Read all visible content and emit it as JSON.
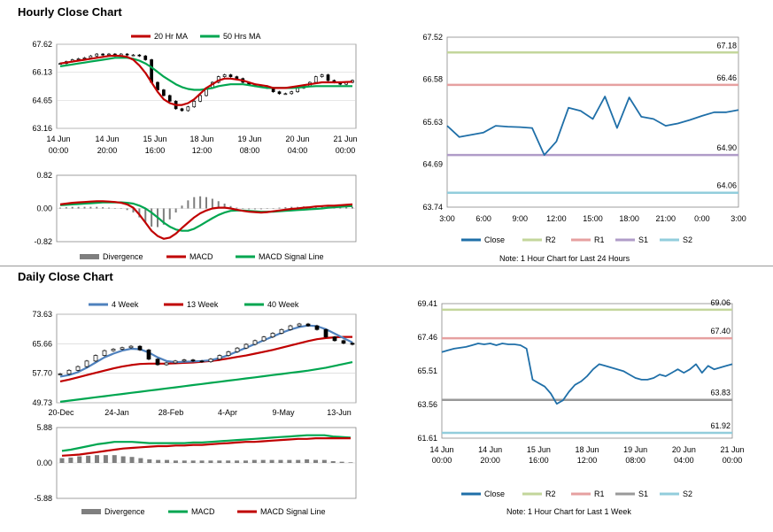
{
  "sections": {
    "hourly_title": "Hourly Close Chart",
    "daily_title": "Daily Close Chart"
  },
  "colors": {
    "ma_short": "#c00000",
    "ma_long": "#00a650",
    "macd_blue": "#4f81bd",
    "close": "#1f6fa8",
    "r2": "#c3d69b",
    "r1": "#e6a0a0",
    "s1": "#b09cc8",
    "s2": "#92cddc",
    "s1_daily": "#999999",
    "divergence": "#7f7f7f"
  },
  "chart_data": [
    {
      "id": "hourly_price",
      "type": "candlestick",
      "legend": [
        "20 Hr MA",
        "50 Hrs MA"
      ],
      "yticks": [
        "67.62",
        "66.13",
        "64.65",
        "63.16"
      ],
      "ylim": [
        63.16,
        67.62
      ],
      "xticks": [
        [
          "14 Jun",
          "00:00"
        ],
        [
          "14 Jun",
          "20:00"
        ],
        [
          "15 Jun",
          "16:00"
        ],
        [
          "18 Jun",
          "12:00"
        ],
        [
          "19 Jun",
          "08:00"
        ],
        [
          "20 Jun",
          "04:00"
        ],
        [
          "21 Jun",
          "00:00"
        ]
      ],
      "close": [
        66.6,
        66.7,
        66.8,
        66.85,
        66.9,
        67.0,
        67.1,
        67.05,
        67.1,
        67.0,
        67.1,
        67.05,
        67.05,
        67.0,
        66.8,
        65.6,
        65.2,
        64.9,
        64.6,
        64.2,
        64.1,
        64.3,
        64.6,
        64.9,
        65.3,
        65.6,
        65.9,
        66.0,
        65.9,
        65.8,
        65.6,
        65.5,
        65.4,
        65.4,
        65.3,
        65.1,
        65.0,
        65.0,
        65.1,
        65.3,
        65.4,
        65.6,
        65.9,
        66.0,
        65.7,
        65.6,
        65.5,
        65.6,
        65.7
      ],
      "ma20": [
        66.6,
        66.65,
        66.7,
        66.75,
        66.8,
        66.85,
        66.9,
        66.95,
        67.0,
        67.02,
        67.0,
        66.95,
        66.8,
        66.5,
        66.1,
        65.6,
        65.1,
        64.7,
        64.5,
        64.4,
        64.4,
        64.5,
        64.7,
        65.0,
        65.3,
        65.5,
        65.7,
        65.8,
        65.8,
        65.75,
        65.7,
        65.6,
        65.5,
        65.45,
        65.4,
        65.3,
        65.3,
        65.3,
        65.35,
        65.4,
        65.45,
        65.5,
        65.55,
        65.6,
        65.6,
        65.6,
        65.6,
        65.62,
        65.63
      ],
      "ma50": [
        66.45,
        66.5,
        66.55,
        66.6,
        66.65,
        66.7,
        66.75,
        66.8,
        66.85,
        66.9,
        66.9,
        66.9,
        66.85,
        66.75,
        66.6,
        66.4,
        66.15,
        65.9,
        65.7,
        65.5,
        65.35,
        65.25,
        65.2,
        65.2,
        65.25,
        65.3,
        65.4,
        65.45,
        65.5,
        65.5,
        65.5,
        65.45,
        65.4,
        65.35,
        65.3,
        65.3,
        65.3,
        65.3,
        65.3,
        65.32,
        65.35,
        65.38,
        65.4,
        65.4,
        65.4,
        65.4,
        65.4,
        65.4,
        65.4
      ]
    },
    {
      "id": "hourly_macd",
      "type": "macd",
      "legend": [
        "Divergence",
        "MACD",
        "MACD Signal Line"
      ],
      "yticks": [
        "0.82",
        "0.00",
        "-0.82"
      ],
      "ylim": [
        -0.82,
        0.82
      ],
      "macd": [
        0.1,
        0.12,
        0.14,
        0.15,
        0.16,
        0.17,
        0.18,
        0.18,
        0.17,
        0.16,
        0.14,
        0.1,
        0.02,
        -0.15,
        -0.35,
        -0.55,
        -0.68,
        -0.75,
        -0.72,
        -0.62,
        -0.48,
        -0.35,
        -0.22,
        -0.12,
        -0.05,
        0.0,
        0.02,
        0.02,
        0.0,
        -0.03,
        -0.06,
        -0.08,
        -0.09,
        -0.1,
        -0.09,
        -0.07,
        -0.05,
        -0.03,
        -0.01,
        0.0,
        0.02,
        0.03,
        0.05,
        0.06,
        0.07,
        0.07,
        0.08,
        0.09,
        0.1
      ],
      "signal": [
        0.08,
        0.09,
        0.1,
        0.11,
        0.12,
        0.13,
        0.14,
        0.15,
        0.15,
        0.15,
        0.15,
        0.14,
        0.12,
        0.07,
        0.0,
        -0.1,
        -0.22,
        -0.35,
        -0.45,
        -0.52,
        -0.55,
        -0.55,
        -0.5,
        -0.42,
        -0.33,
        -0.24,
        -0.16,
        -0.1,
        -0.06,
        -0.05,
        -0.05,
        -0.06,
        -0.07,
        -0.08,
        -0.08,
        -0.08,
        -0.07,
        -0.06,
        -0.05,
        -0.04,
        -0.03,
        -0.02,
        -0.01,
        0.0,
        0.02,
        0.03,
        0.04,
        0.05,
        0.06
      ],
      "divergence": [
        0.02,
        0.03,
        0.04,
        0.04,
        0.04,
        0.04,
        0.04,
        0.03,
        0.02,
        0.01,
        -0.01,
        -0.04,
        -0.1,
        -0.22,
        -0.35,
        -0.45,
        -0.46,
        -0.4,
        -0.27,
        -0.1,
        0.07,
        0.2,
        0.28,
        0.3,
        0.28,
        0.24,
        0.18,
        0.12,
        0.06,
        0.02,
        -0.01,
        -0.02,
        -0.02,
        -0.02,
        -0.01,
        0.01,
        0.02,
        0.03,
        0.04,
        0.04,
        0.05,
        0.05,
        0.06,
        0.06,
        0.05,
        0.04,
        0.04,
        0.04,
        0.04
      ]
    },
    {
      "id": "hourly_24h",
      "type": "line",
      "yticks": [
        "67.52",
        "66.58",
        "65.63",
        "64.69",
        "63.74"
      ],
      "ylim": [
        63.74,
        67.52
      ],
      "xticks": [
        "3:00",
        "6:00",
        "9:00",
        "12:00",
        "15:00",
        "18:00",
        "21:00",
        "0:00",
        "3:00"
      ],
      "levels": {
        "R2": 67.18,
        "R1": 66.46,
        "S1": 64.9,
        "S2": 64.06
      },
      "level_labels": {
        "R2": "67.18",
        "R1": "66.46",
        "S1": "64.90",
        "S2": "64.06"
      },
      "values": [
        65.55,
        65.3,
        65.35,
        65.4,
        65.55,
        65.53,
        65.52,
        65.5,
        64.9,
        65.2,
        65.95,
        65.88,
        65.7,
        66.2,
        65.5,
        66.18,
        65.75,
        65.7,
        65.55,
        65.6,
        65.68,
        65.77,
        65.85,
        65.85,
        65.9
      ],
      "legend": [
        "Close",
        "R2",
        "R1",
        "S1",
        "S2"
      ],
      "note": "Note: 1 Hour Chart for Last 24 Hours"
    },
    {
      "id": "daily_price",
      "type": "candlestick",
      "legend": [
        "4 Week",
        "13 Week",
        "40 Week"
      ],
      "yticks": [
        "73.63",
        "65.66",
        "57.70",
        "49.73"
      ],
      "ylim": [
        49.73,
        73.63
      ],
      "xticks": [
        "20-Dec",
        "24-Jan",
        "28-Feb",
        "4-Apr",
        "9-May",
        "13-Jun"
      ],
      "close": [
        57.5,
        58.5,
        59.5,
        61.0,
        62.5,
        63.8,
        64.2,
        64.6,
        65.0,
        64.0,
        61.5,
        60.0,
        60.5,
        61.0,
        61.3,
        61.0,
        60.8,
        61.5,
        62.5,
        63.5,
        64.5,
        65.5,
        66.5,
        67.5,
        68.5,
        69.5,
        70.5,
        71.0,
        70.5,
        69.5,
        67.5,
        66.5,
        65.8,
        65.5
      ],
      "wk4": [
        56.8,
        57.2,
        58.0,
        59.2,
        60.6,
        62.0,
        63.0,
        63.8,
        64.3,
        64.2,
        63.3,
        62.0,
        61.0,
        60.7,
        60.8,
        60.9,
        61.0,
        61.2,
        61.8,
        62.6,
        63.6,
        64.6,
        65.6,
        66.6,
        67.6,
        68.6,
        69.5,
        70.2,
        70.6,
        70.4,
        69.6,
        68.4,
        67.2,
        66.0
      ],
      "wk13": [
        55.5,
        56.0,
        56.6,
        57.2,
        57.8,
        58.4,
        59.0,
        59.5,
        59.9,
        60.2,
        60.3,
        60.3,
        60.3,
        60.4,
        60.5,
        60.6,
        60.8,
        61.0,
        61.3,
        61.7,
        62.1,
        62.5,
        63.0,
        63.5,
        64.0,
        64.6,
        65.2,
        65.8,
        66.4,
        66.9,
        67.2,
        67.4,
        67.5,
        67.5
      ],
      "wk40": [
        50.0,
        50.3,
        50.6,
        50.9,
        51.2,
        51.5,
        51.8,
        52.1,
        52.4,
        52.7,
        53.0,
        53.3,
        53.6,
        53.9,
        54.2,
        54.5,
        54.8,
        55.1,
        55.4,
        55.7,
        56.0,
        56.3,
        56.6,
        56.9,
        57.2,
        57.5,
        57.8,
        58.1,
        58.4,
        58.8,
        59.2,
        59.7,
        60.2,
        60.7
      ]
    },
    {
      "id": "daily_macd",
      "type": "macd",
      "legend": [
        "Divergence",
        "MACD",
        "MACD Signal Line"
      ],
      "yticks": [
        "5.88",
        "0.00",
        "-5.88"
      ],
      "ylim": [
        -5.88,
        5.88
      ],
      "macd": [
        2.0,
        2.2,
        2.5,
        2.8,
        3.1,
        3.3,
        3.5,
        3.5,
        3.5,
        3.4,
        3.3,
        3.3,
        3.3,
        3.3,
        3.3,
        3.4,
        3.4,
        3.5,
        3.6,
        3.7,
        3.8,
        3.9,
        4.0,
        4.1,
        4.2,
        4.3,
        4.4,
        4.5,
        4.6,
        4.6,
        4.6,
        4.4,
        4.3,
        4.2
      ],
      "signal": [
        1.2,
        1.3,
        1.4,
        1.6,
        1.8,
        2.0,
        2.2,
        2.4,
        2.5,
        2.6,
        2.7,
        2.8,
        2.8,
        2.9,
        2.9,
        3.0,
        3.0,
        3.1,
        3.2,
        3.3,
        3.4,
        3.5,
        3.5,
        3.6,
        3.7,
        3.8,
        3.9,
        4.0,
        4.0,
        4.1,
        4.1,
        4.1,
        4.1,
        4.1
      ],
      "divergence": [
        0.8,
        0.9,
        1.1,
        1.2,
        1.3,
        1.3,
        1.3,
        1.1,
        1.0,
        0.8,
        0.6,
        0.5,
        0.5,
        0.4,
        0.4,
        0.4,
        0.4,
        0.4,
        0.4,
        0.4,
        0.4,
        0.4,
        0.5,
        0.5,
        0.5,
        0.5,
        0.5,
        0.5,
        0.6,
        0.5,
        0.5,
        0.3,
        0.2,
        0.1
      ]
    },
    {
      "id": "daily_week",
      "type": "line",
      "yticks": [
        "69.41",
        "67.46",
        "65.51",
        "63.56",
        "61.61"
      ],
      "ylim": [
        61.61,
        69.41
      ],
      "xticks": [
        [
          "14 Jun",
          "00:00"
        ],
        [
          "14 Jun",
          "20:00"
        ],
        [
          "15 Jun",
          "16:00"
        ],
        [
          "18 Jun",
          "12:00"
        ],
        [
          "19 Jun",
          "08:00"
        ],
        [
          "20 Jun",
          "04:00"
        ],
        [
          "21 Jun",
          "00:00"
        ]
      ],
      "levels": {
        "R2": 69.06,
        "R1": 67.4,
        "S1": 63.83,
        "S2": 61.92
      },
      "level_labels": {
        "R2": "69.06",
        "R1": "67.40",
        "S1": "63.83",
        "S2": "61.92"
      },
      "values": [
        66.6,
        66.7,
        66.8,
        66.85,
        66.9,
        67.0,
        67.1,
        67.05,
        67.1,
        67.0,
        67.1,
        67.05,
        67.05,
        67.0,
        66.8,
        65.0,
        64.8,
        64.6,
        64.2,
        63.6,
        63.8,
        64.3,
        64.7,
        64.9,
        65.2,
        65.6,
        65.9,
        65.8,
        65.7,
        65.6,
        65.5,
        65.3,
        65.1,
        65.0,
        65.0,
        65.1,
        65.3,
        65.2,
        65.4,
        65.6,
        65.4,
        65.6,
        65.9,
        65.4,
        65.8,
        65.6,
        65.7,
        65.8,
        65.9
      ],
      "legend": [
        "Close",
        "R2",
        "R1",
        "S1",
        "S2"
      ],
      "note": "Note: 1 Hour Chart for Last 1 Week"
    }
  ]
}
